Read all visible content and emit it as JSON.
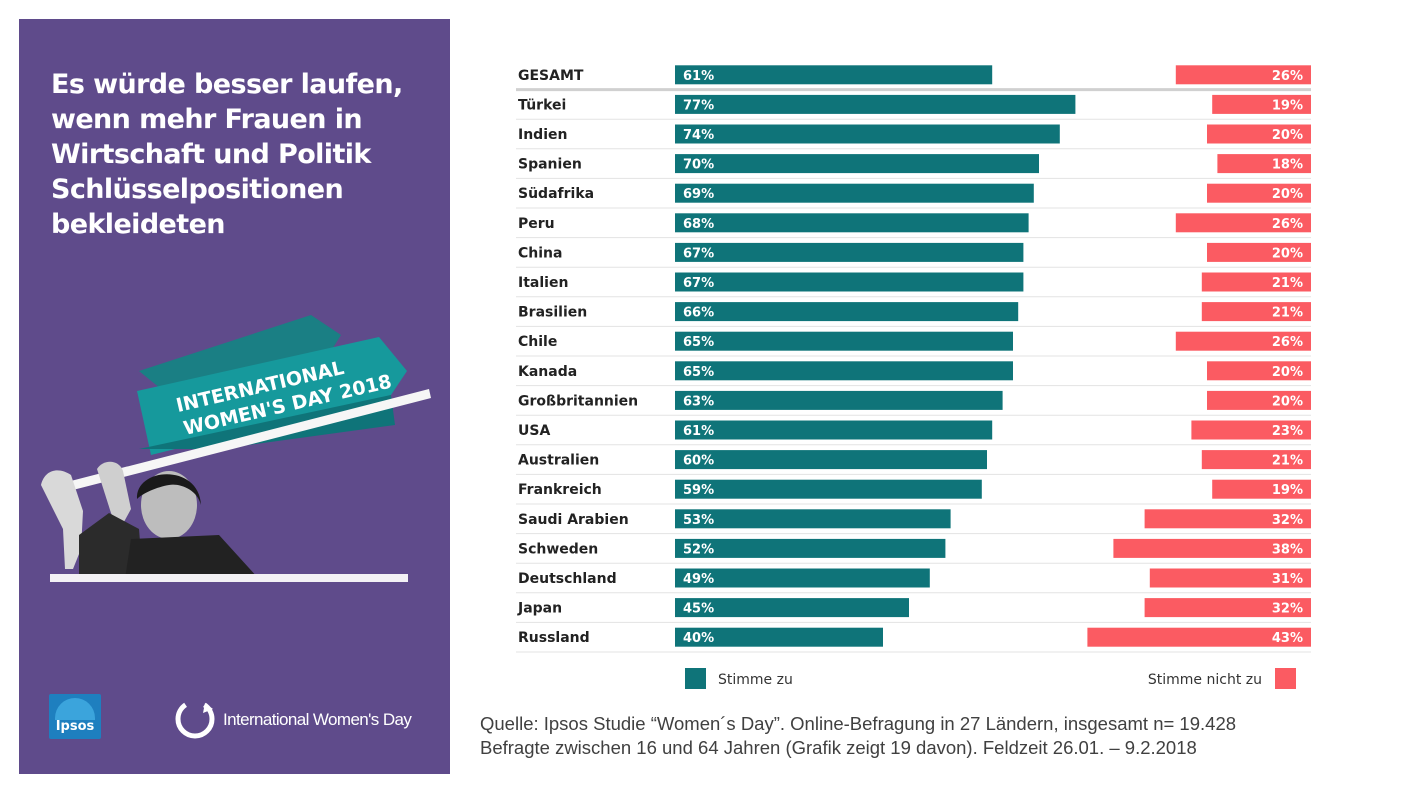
{
  "headline": {
    "lines": [
      "Es würde besser laufen,",
      "wenn mehr Frauen in",
      "Wirtschaft und Politik",
      "Schlüsselpositionen",
      "bekleideten"
    ]
  },
  "banner": {
    "line1": "INTERNATIONAL",
    "line2": "WOMEN'S DAY 2018"
  },
  "logos": {
    "ipsos": "Ipsos",
    "iwd": "International Women's Day"
  },
  "colors": {
    "panel": "#5f4b8b",
    "agree": "#0f7479",
    "disagree": "#fb5b62"
  },
  "chart_data": {
    "type": "bar",
    "orientation": "horizontal",
    "title": "Es würde besser laufen, wenn mehr Frauen in Wirtschaft und Politik Schlüsselpositionen bekleideten",
    "xlim": [
      0,
      100
    ],
    "categories": [
      "GESAMT",
      "Türkei",
      "Indien",
      "Spanien",
      "Südafrika",
      "Peru",
      "China",
      "Italien",
      "Brasilien",
      "Chile",
      "Kanada",
      "Großbritannien",
      "USA",
      "Australien",
      "Frankreich",
      "Saudi Arabien",
      "Schweden",
      "Deutschland",
      "Japan",
      "Russland"
    ],
    "series": [
      {
        "name": "Stimme zu",
        "color": "#0f7479",
        "values": [
          61,
          77,
          74,
          70,
          69,
          68,
          67,
          67,
          66,
          65,
          65,
          63,
          61,
          60,
          59,
          53,
          52,
          49,
          45,
          40
        ],
        "labels": [
          "61%",
          "77%",
          "74%",
          "70%",
          "69%",
          "68%",
          "67%",
          "67%",
          "66%",
          "65%",
          "65%",
          "63%",
          "61%",
          "60%",
          "59%",
          "53%",
          "52%",
          "49%",
          "45%",
          "40%"
        ]
      },
      {
        "name": "Stimme nicht zu",
        "color": "#fb5b62",
        "values": [
          26,
          19,
          20,
          18,
          20,
          26,
          20,
          21,
          21,
          26,
          20,
          20,
          23,
          21,
          19,
          32,
          38,
          31,
          32,
          43
        ],
        "labels": [
          "26%",
          "19%",
          "20%",
          "18%",
          "20%",
          "26%",
          "20%",
          "21%",
          "21%",
          "26%",
          "20%",
          "20%",
          "23%",
          "21%",
          "19%",
          "32%",
          "38%",
          "31%",
          "32%",
          "43%"
        ]
      }
    ],
    "legend": [
      "Stimme zu",
      "Stimme nicht zu"
    ]
  },
  "source": {
    "line1": "Quelle:  Ipsos Studie “Women´s Day”. Online-Befragung  in 27 Ländern, insgesamt n= 19.428",
    "line2": "Befragte zwischen 16 und 64 Jahren (Grafik zeigt 19 davon). Feldzeit 26.01. – 9.2.2018"
  }
}
